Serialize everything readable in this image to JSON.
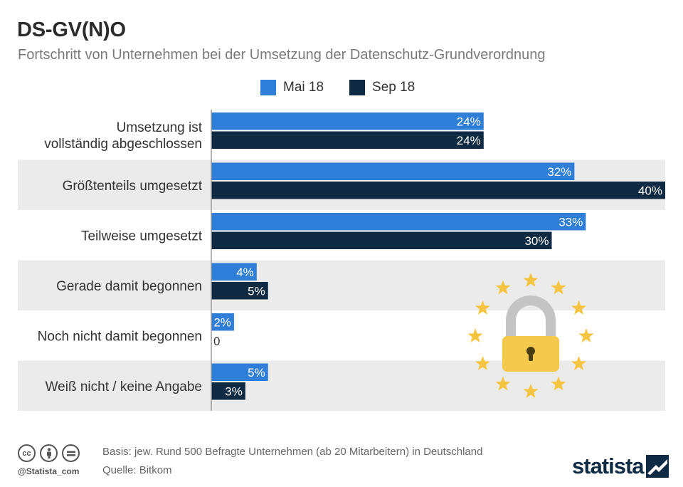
{
  "header": {
    "title": "DS-GV(N)O",
    "subtitle": "Fortschritt von Unternehmen bei der Umsetzung der Datenschutz-Grundverordnung"
  },
  "colors": {
    "series1": "#2f7ed8",
    "series2": "#0f2b43",
    "band": "#ebebeb",
    "label_text": "#ffffff",
    "zero_text": "#333333",
    "star": "#f5c542",
    "lock_body": "#f5c94e",
    "lock_shackle": "#c4c4c4"
  },
  "chart_data": {
    "type": "bar",
    "orientation": "horizontal",
    "categories": [
      [
        "Umsetzung ist",
        "vollständig abgeschlossen"
      ],
      [
        "Größtenteils umgesetzt"
      ],
      [
        "Teilweise umgesetzt"
      ],
      [
        "Gerade damit begonnen"
      ],
      [
        "Noch nicht damit begonnen"
      ],
      [
        "Weiß nicht / keine Angabe"
      ]
    ],
    "series": [
      {
        "name": "Mai 18",
        "values": [
          24,
          32,
          33,
          4,
          2,
          5
        ],
        "labels": [
          "24%",
          "32%",
          "33%",
          "4%",
          "2%",
          "5%"
        ]
      },
      {
        "name": "Sep 18",
        "values": [
          24,
          40,
          30,
          5,
          0,
          3
        ],
        "labels": [
          "24%",
          "40%",
          "30%",
          "5%",
          "0",
          "3%"
        ]
      }
    ],
    "xlim": [
      0,
      40
    ],
    "legend": "top-center"
  },
  "footer": {
    "basis": "Basis: jew. Rund 500 Befragte Unternehmen (ab 20 Mitarbeitern) in Deutschland",
    "source": "Quelle: Bitkom",
    "handle": "@Statista_com",
    "brand": "statista",
    "cc_icons": [
      "cc-icon",
      "by-icon",
      "nd-icon"
    ]
  }
}
